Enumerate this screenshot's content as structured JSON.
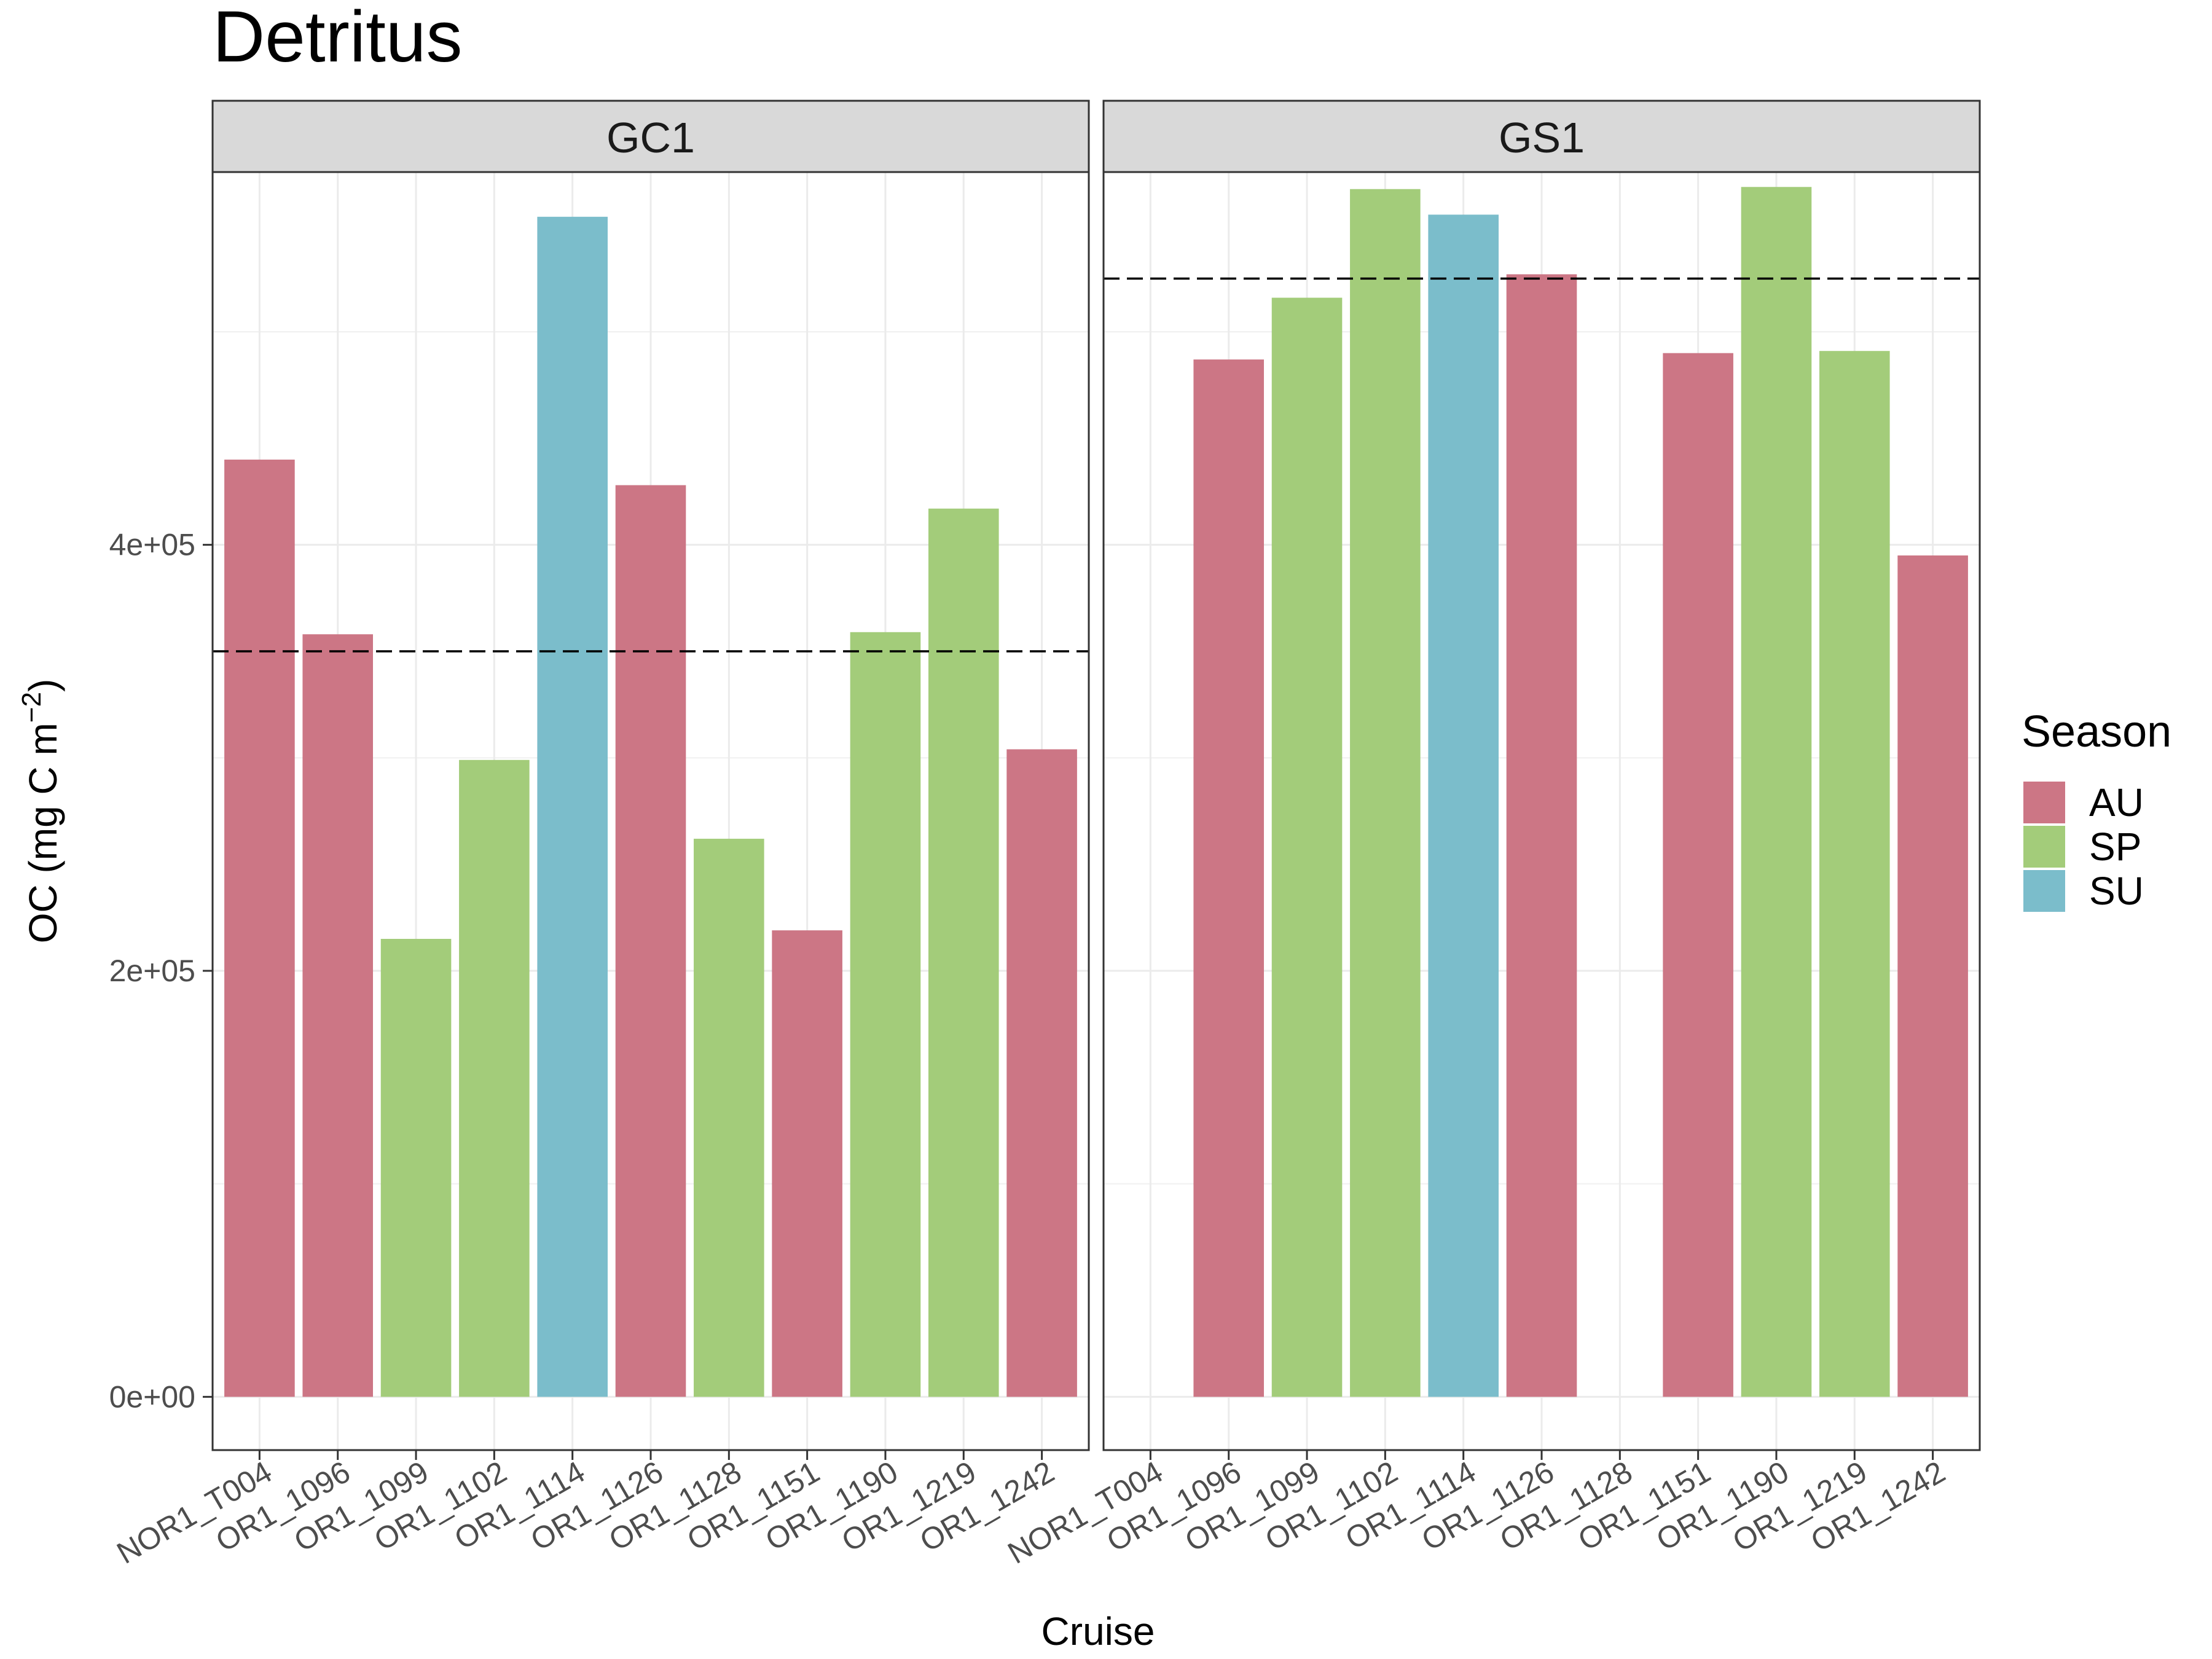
{
  "chart_data": {
    "type": "bar",
    "title": "Detritus",
    "xlabel": "Cruise",
    "ylabel": "OC (mg C m",
    "ylabel_superscript": "−2",
    "ylabel_close": ")",
    "ylim": [
      -25000,
      575000
    ],
    "yticks": [
      0,
      200000,
      400000
    ],
    "ytick_labels": [
      "0e+00",
      "2e+05",
      "4e+05"
    ],
    "grid": true,
    "categories": [
      "NOR1_T004",
      "OR1_1096",
      "OR1_1099",
      "OR1_1102",
      "OR1_1114",
      "OR1_1126",
      "OR1_1128",
      "OR1_1151",
      "OR1_1190",
      "OR1_1219",
      "OR1_1242"
    ],
    "legend": {
      "title": "Season",
      "position": "right",
      "items": [
        {
          "label": "AU",
          "color": "#cc7685"
        },
        {
          "label": "SP",
          "color": "#a3cc7a"
        },
        {
          "label": "SU",
          "color": "#7bbdcb"
        }
      ]
    },
    "panels": [
      {
        "name": "GC1",
        "reference_line": 350000,
        "bars": [
          {
            "category": "NOR1_T004",
            "season": "AU",
            "value": 440000
          },
          {
            "category": "OR1_1096",
            "season": "AU",
            "value": 358000
          },
          {
            "category": "OR1_1099",
            "season": "SP",
            "value": 215000
          },
          {
            "category": "OR1_1102",
            "season": "SP",
            "value": 299000
          },
          {
            "category": "OR1_1114",
            "season": "SU",
            "value": 554000
          },
          {
            "category": "OR1_1126",
            "season": "AU",
            "value": 428000
          },
          {
            "category": "OR1_1128",
            "season": "SP",
            "value": 262000
          },
          {
            "category": "OR1_1151",
            "season": "AU",
            "value": 219000
          },
          {
            "category": "OR1_1190",
            "season": "SP",
            "value": 359000
          },
          {
            "category": "OR1_1219",
            "season": "SP",
            "value": 417000
          },
          {
            "category": "OR1_1242",
            "season": "AU",
            "value": 304000
          }
        ]
      },
      {
        "name": "GS1",
        "reference_line": 525000,
        "bars": [
          {
            "category": "OR1_1096",
            "season": "AU",
            "value": 487000
          },
          {
            "category": "OR1_1099",
            "season": "SP",
            "value": 516000
          },
          {
            "category": "OR1_1102",
            "season": "SP",
            "value": 567000
          },
          {
            "category": "OR1_1114",
            "season": "SU",
            "value": 555000
          },
          {
            "category": "OR1_1126",
            "season": "AU",
            "value": 527000
          },
          {
            "category": "OR1_1151",
            "season": "AU",
            "value": 490000
          },
          {
            "category": "OR1_1190",
            "season": "SP",
            "value": 568000
          },
          {
            "category": "OR1_1219",
            "season": "SP",
            "value": 491000
          },
          {
            "category": "OR1_1242",
            "season": "AU",
            "value": 395000
          }
        ]
      }
    ]
  }
}
